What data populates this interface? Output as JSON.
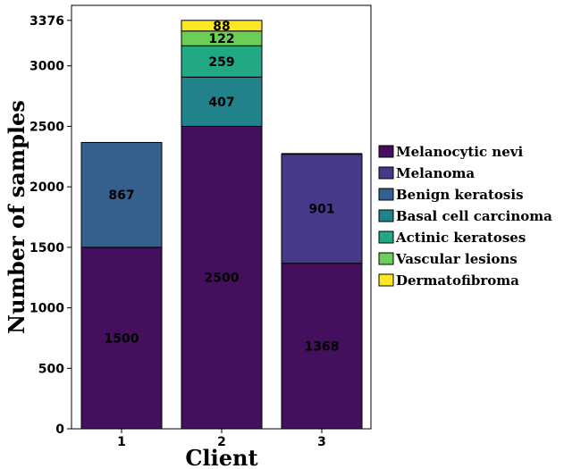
{
  "chart_data": {
    "type": "bar",
    "stacked": true,
    "xlabel": "Client",
    "ylabel": "Number of samples",
    "ylim": [
      0,
      3500
    ],
    "yticks": [
      0,
      500,
      1000,
      1500,
      2000,
      2500,
      3000,
      3376
    ],
    "categories": [
      "1",
      "2",
      "3"
    ],
    "series": [
      {
        "name": "Melanocytic nevi",
        "color": "#440f5c",
        "values": [
          1500,
          2500,
          1368
        ]
      },
      {
        "name": "Melanoma",
        "color": "#46398a",
        "values": [
          0,
          0,
          901
        ]
      },
      {
        "name": "Benign keratosis",
        "color": "#355f8d",
        "values": [
          867,
          0,
          0
        ]
      },
      {
        "name": "Basal cell carcinoma",
        "color": "#21828c",
        "values": [
          0,
          407,
          0
        ]
      },
      {
        "name": "Actinic keratoses",
        "color": "#22a884",
        "values": [
          0,
          259,
          0
        ]
      },
      {
        "name": "Vascular lesions",
        "color": "#6cce59",
        "values": [
          0,
          122,
          0
        ]
      },
      {
        "name": "Dermatofibroma",
        "color": "#fde725",
        "values": [
          0,
          88,
          0
        ]
      }
    ],
    "data_labels": [
      [
        "1500",
        "",
        "867",
        "",
        "",
        "",
        ""
      ],
      [
        "2500",
        "",
        "",
        "407",
        "259",
        "122",
        "88"
      ],
      [
        "1368",
        "901",
        "",
        "",
        "",
        "",
        ""
      ]
    ],
    "extra_segment": {
      "category": "3",
      "value": 10,
      "color": "#000000"
    },
    "legend_position": "right",
    "grid": false
  }
}
